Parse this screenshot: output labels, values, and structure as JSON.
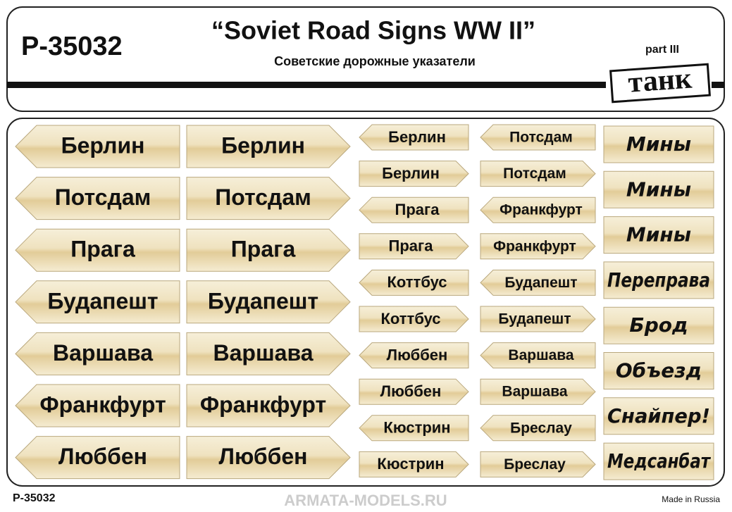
{
  "header": {
    "code": "P-35032",
    "title": "“Soviet Road Signs  WW II”",
    "subtitle": "Советские дорожные указатели",
    "part": "part III",
    "logo": "танк"
  },
  "signs": [
    [
      "Берлин",
      "Потсдам",
      "Прага",
      "Будапешт",
      "Варшава",
      "Франкфурт",
      "Люббен"
    ],
    [
      "Берлин",
      "Потсдам",
      "Прага",
      "Будапешт",
      "Варшава",
      "Франкфурт",
      "Люббен"
    ],
    [
      "Берлин",
      "Берлин",
      "Прага",
      "Прага",
      "Коттбус",
      "Коттбус",
      "Люббен",
      "Люббен",
      "Кюстрин",
      "Кюстрин"
    ],
    [
      "Потсдам",
      "Потсдам",
      "Франкфурт",
      "Франкфурт",
      "Будапешт",
      "Будапешт",
      "Варшава",
      "Варшава",
      "Бреслау",
      "Бреслау"
    ],
    [
      "Мины",
      "Мины",
      "Мины",
      "Переправа",
      "Брод",
      "Объезд",
      "Снайпер!",
      "Медсанбат"
    ]
  ],
  "footer": {
    "code": "P-35032",
    "origin": "Made in Russia",
    "watermark": "ARMATA-MODELS.RU"
  }
}
